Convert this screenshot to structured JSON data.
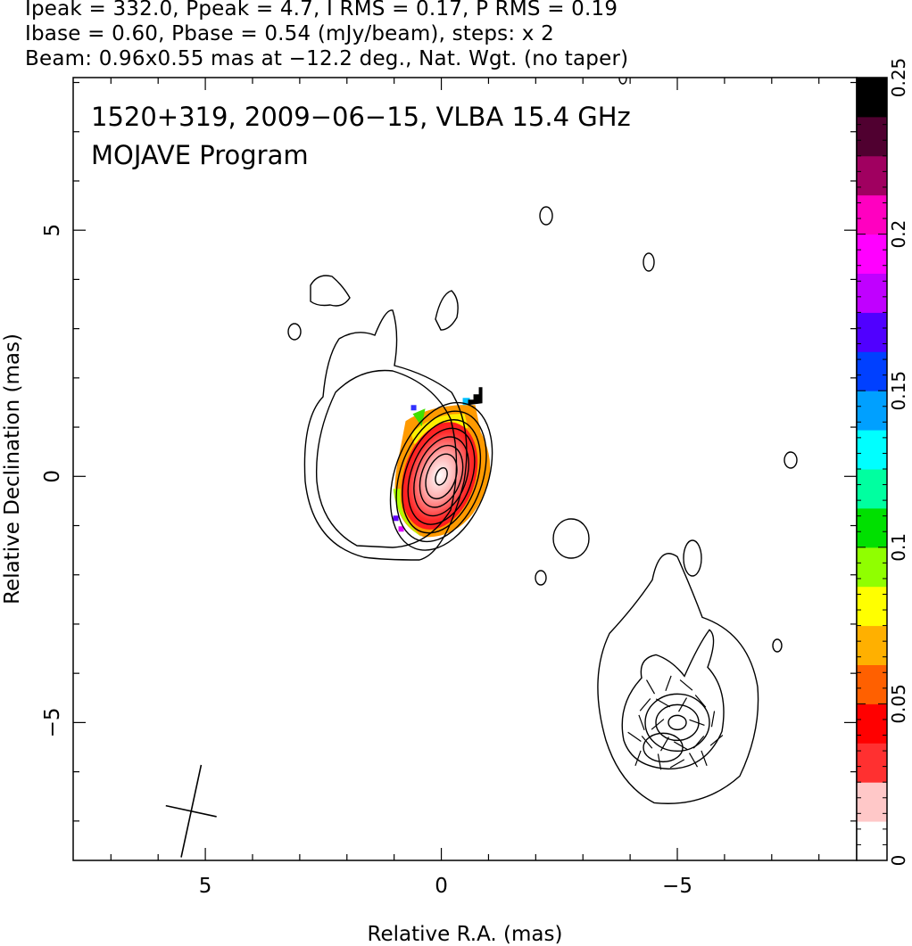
{
  "header": {
    "line1": "Ipeak = 332.0, Ppeak = 4.7, I RMS = 0.17, P RMS = 0.19",
    "line2": "Ibase = 0.60, Pbase = 0.54 (mJy/beam), steps: x 2",
    "line3": "Beam: 0.96x0.55 mas at −12.2 deg., Nat. Wgt. (no taper)"
  },
  "annotation": {
    "line1": "1520+319, 2009−06−15, VLBA 15.4 GHz",
    "line2": "MOJAVE Program"
  },
  "chart_data": {
    "type": "heatmap",
    "title": "",
    "xlabel": "Relative R.A. (mas)",
    "ylabel": "Relative Declination (mas)",
    "xlim": [
      7.8,
      -8.8
    ],
    "ylim": [
      -7.8,
      8.1
    ],
    "x_ticks": [
      5,
      0,
      -5
    ],
    "x_tick_labels": [
      "5",
      "0",
      "−5"
    ],
    "y_ticks": [
      5,
      0,
      -5
    ],
    "y_tick_labels": [
      "5",
      "0",
      "−5"
    ],
    "colorbar": {
      "range": [
        0,
        0.25
      ],
      "ticks": [
        0,
        0.05,
        0.1,
        0.15,
        0.2,
        0.25
      ],
      "tick_labels": [
        "0",
        "0.05",
        "0.1",
        "0.15",
        "0.2",
        "0.25"
      ],
      "colors": [
        "#ffffff",
        "#ffc8c8",
        "#ff3030",
        "#ff0000",
        "#ff6000",
        "#ffb000",
        "#ffff00",
        "#90ff00",
        "#00e000",
        "#00ffa0",
        "#00ffff",
        "#00a0ff",
        "#0040ff",
        "#5000ff",
        "#c000ff",
        "#ff00ff",
        "#ff00c0",
        "#a00060",
        "#500030",
        "#000000"
      ]
    },
    "intensity_peak_mJy_per_beam": 332.0,
    "polarized_peak_mJy_per_beam": 4.7,
    "contour_base_mJy_per_beam": 0.6,
    "contour_step_factor": 2,
    "core_position_mas": [
      0,
      0
    ],
    "secondary_component_position_mas": [
      -5.0,
      -5.0
    ],
    "beam": {
      "major_mas": 0.96,
      "minor_mas": 0.55,
      "pa_deg": -12.2,
      "position_mas": [
        5.3,
        -6.8
      ]
    },
    "grid": false
  }
}
